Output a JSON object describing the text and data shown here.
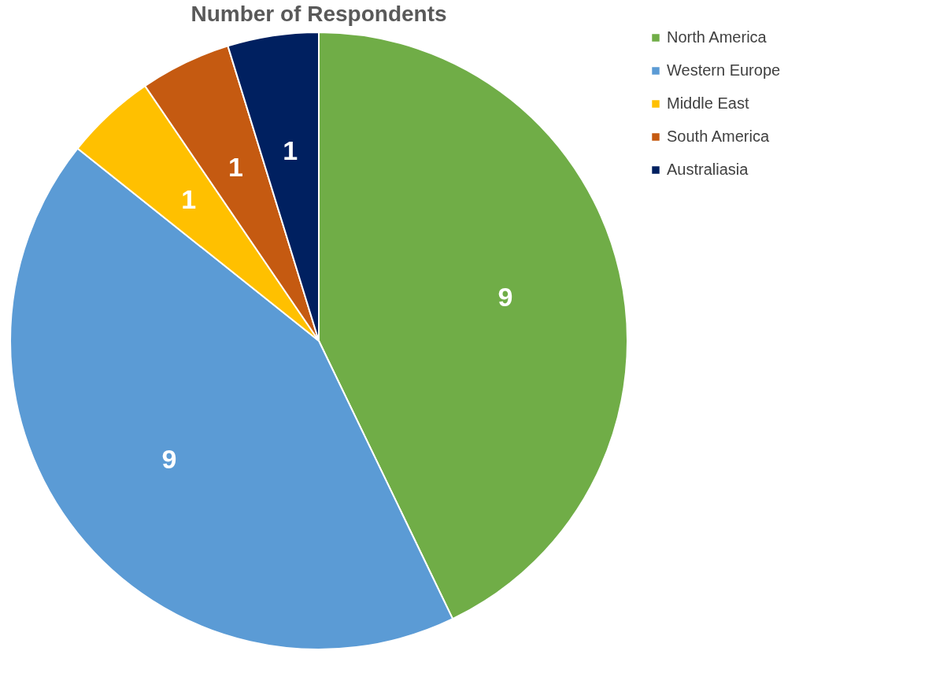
{
  "chart_data": {
    "type": "pie",
    "title": "Number of Respondents",
    "categories": [
      "North America",
      "Western Europe",
      "Middle East",
      "South America",
      "Australiasia"
    ],
    "values": [
      9,
      9,
      1,
      1,
      1
    ],
    "colors": [
      "#70ad47",
      "#5b9bd5",
      "#ffc000",
      "#c55a11",
      "#002060"
    ],
    "data_labels": true,
    "legend": "right"
  }
}
